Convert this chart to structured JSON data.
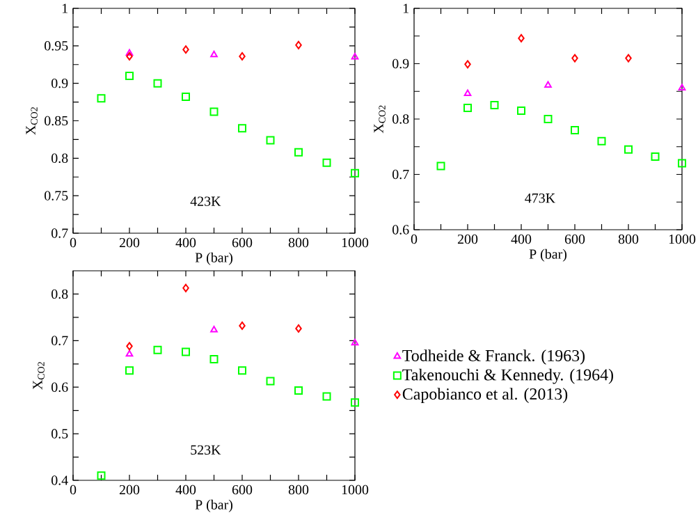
{
  "chart_data": [
    {
      "type": "scatter",
      "xlabel": "P (bar)",
      "ylabel": "X$_{CO2}$",
      "annotations": [
        "423K"
      ],
      "xlim": [
        0,
        1000
      ],
      "ylim": [
        0.7,
        1
      ],
      "xticks": [
        0,
        {
          "value": 100,
          "label": null
        },
        200,
        {
          "value": 300,
          "label": null
        },
        400,
        {
          "value": 500,
          "label": null
        },
        600,
        {
          "value": 700,
          "label": null
        },
        800,
        {
          "value": 900,
          "label": null
        },
        1000
      ],
      "yticks": [
        0.7,
        {
          "value": 0.725,
          "label": null
        },
        0.75,
        {
          "value": 0.775,
          "label": null
        },
        0.8,
        {
          "value": 0.825,
          "label": null
        },
        0.85,
        {
          "value": 0.875,
          "label": null
        },
        0.9,
        {
          "value": 0.925,
          "label": null
        },
        0.95,
        {
          "value": 0.975,
          "label": null
        },
        1
      ],
      "series": [
        {
          "color": "#ff00ff",
          "marker": "triangle",
          "x": [
            200,
            500,
            1000
          ],
          "values": [
            0.94,
            0.938,
            0.935
          ]
        },
        {
          "color": "#00ff00",
          "marker": "square",
          "x": [
            100,
            200,
            300,
            400,
            500,
            600,
            700,
            800,
            900,
            1000
          ],
          "values": [
            0.88,
            0.91,
            0.9,
            0.882,
            0.862,
            0.84,
            0.824,
            0.808,
            0.794,
            0.78
          ]
        },
        {
          "color": "#ff0000",
          "marker": "diamond",
          "x": [
            200,
            400,
            600,
            800
          ],
          "values": [
            0.936,
            0.945,
            0.936,
            0.951
          ]
        }
      ]
    },
    {
      "type": "scatter",
      "xlabel": "P (bar)",
      "ylabel": "X$_{CO2}$",
      "annotations": [
        "473K"
      ],
      "xlim": [
        0,
        1000
      ],
      "ylim": [
        0.6,
        1
      ],
      "xticks": [
        0,
        {
          "value": 100,
          "label": null
        },
        200,
        {
          "value": 300,
          "label": null
        },
        400,
        {
          "value": 500,
          "label": null
        },
        600,
        {
          "value": 700,
          "label": null
        },
        800,
        {
          "value": 900,
          "label": null
        },
        1000
      ],
      "yticks": [
        0.6,
        {
          "value": 0.65,
          "label": null
        },
        0.7,
        {
          "value": 0.75,
          "label": null
        },
        0.8,
        {
          "value": 0.85,
          "label": null
        },
        0.9,
        {
          "value": 0.95,
          "label": null
        },
        1
      ],
      "series": [
        {
          "color": "#ff00ff",
          "marker": "triangle",
          "x": [
            200,
            500,
            1000
          ],
          "values": [
            0.846,
            0.861,
            0.856
          ]
        },
        {
          "color": "#00ff00",
          "marker": "square",
          "x": [
            100,
            200,
            300,
            400,
            500,
            600,
            700,
            800,
            900,
            1000
          ],
          "values": [
            0.715,
            0.82,
            0.825,
            0.815,
            0.8,
            0.78,
            0.76,
            0.745,
            0.732,
            0.72
          ]
        },
        {
          "color": "#ff0000",
          "marker": "diamond",
          "x": [
            200,
            400,
            600,
            800
          ],
          "values": [
            0.899,
            0.946,
            0.91,
            0.91
          ]
        }
      ]
    },
    {
      "type": "scatter",
      "xlabel": "P (bar)",
      "ylabel": "X$_{CO2}$",
      "annotations": [
        "523K"
      ],
      "legend": "right",
      "xlim": [
        0,
        1000
      ],
      "ylim": [
        0.4,
        0.85
      ],
      "xticks": [
        0,
        {
          "value": 100,
          "label": null
        },
        200,
        {
          "value": 300,
          "label": null
        },
        400,
        {
          "value": 500,
          "label": null
        },
        600,
        {
          "value": 700,
          "label": null
        },
        800,
        {
          "value": 900,
          "label": null
        },
        1000
      ],
      "yticks": [
        0.4,
        {
          "value": 0.45,
          "label": null
        },
        0.5,
        {
          "value": 0.55,
          "label": null
        },
        0.6,
        {
          "value": 0.65,
          "label": null
        },
        0.7,
        {
          "value": 0.75,
          "label": null
        },
        0.8
      ],
      "series": [
        {
          "name": "Todheide & Franck. (1963)",
          "color": "#ff00ff",
          "marker": "triangle",
          "x": [
            200,
            500,
            1000
          ],
          "values": [
            0.671,
            0.723,
            0.695
          ]
        },
        {
          "name": "Takenouchi & Kennedy. (1964)",
          "color": "#00ff00",
          "marker": "square",
          "x": [
            100,
            200,
            300,
            400,
            500,
            600,
            700,
            800,
            900,
            1000
          ],
          "values": [
            0.41,
            0.636,
            0.68,
            0.676,
            0.66,
            0.636,
            0.613,
            0.593,
            0.58,
            0.567
          ]
        },
        {
          "name": "Capobianco et al. (2013)",
          "color": "#ff0000",
          "marker": "diamond",
          "x": [
            200,
            400,
            600,
            800
          ],
          "values": [
            0.688,
            0.813,
            0.732,
            0.726
          ]
        }
      ]
    }
  ]
}
